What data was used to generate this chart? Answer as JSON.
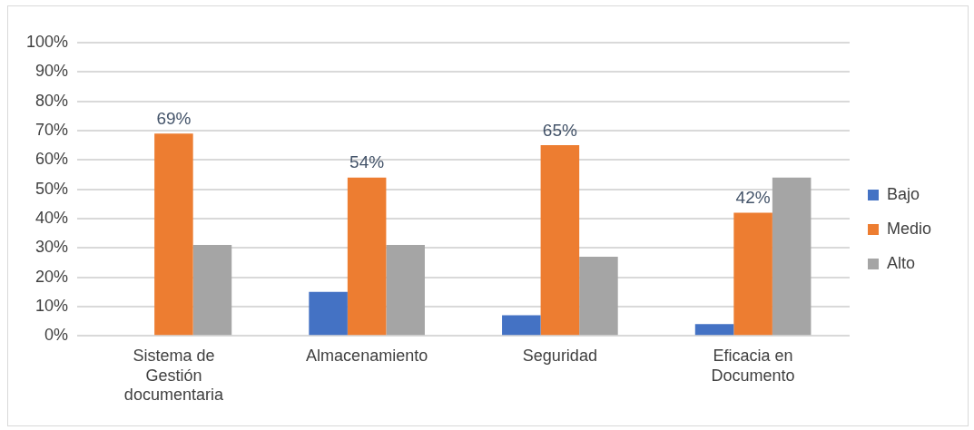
{
  "chart_data": {
    "type": "bar",
    "categories": [
      "Sistema de\nGestión\ndocumentaria",
      "Almacenamiento",
      "Seguridad",
      "Eficacia en\nDocumento"
    ],
    "series": [
      {
        "name": "Bajo",
        "color": "#4472c4",
        "values": [
          0,
          15,
          7,
          4
        ]
      },
      {
        "name": "Medio",
        "color": "#ed7d31",
        "values": [
          69,
          54,
          65,
          42
        ],
        "value_labels": [
          "69%",
          "54%",
          "65%",
          "42%"
        ]
      },
      {
        "name": "Alto",
        "color": "#a5a5a5",
        "values": [
          31,
          31,
          27,
          54
        ]
      }
    ],
    "ylim": [
      0,
      100
    ],
    "yticks": [
      {
        "value": 0,
        "label": "0%"
      },
      {
        "value": 10,
        "label": "10%"
      },
      {
        "value": 20,
        "label": "20%"
      },
      {
        "value": 30,
        "label": "30%"
      },
      {
        "value": 40,
        "label": "40%"
      },
      {
        "value": 50,
        "label": "50%"
      },
      {
        "value": 60,
        "label": "60%"
      },
      {
        "value": 70,
        "label": "70%"
      },
      {
        "value": 80,
        "label": "80%"
      },
      {
        "value": 90,
        "label": "90%"
      },
      {
        "value": 100,
        "label": "100%"
      }
    ],
    "grid": "y",
    "legend": "right"
  }
}
